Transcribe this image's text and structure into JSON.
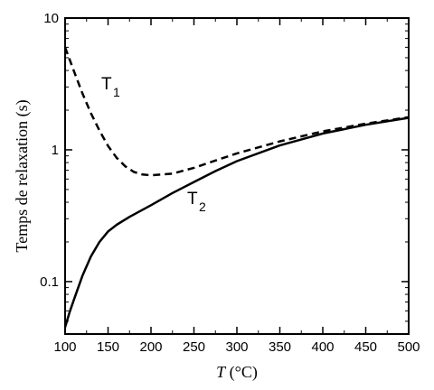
{
  "chart_data": {
    "type": "line",
    "title": "",
    "xlabel": {
      "italic": "T",
      "rest": " (°C)"
    },
    "ylabel": "Temps de relaxation (s)",
    "xlim": [
      100,
      500
    ],
    "ylim": [
      0.04,
      10
    ],
    "yscale": "log",
    "grid": false,
    "xticks": [
      100,
      150,
      200,
      250,
      300,
      350,
      400,
      450,
      500
    ],
    "xtick_labels": [
      "100",
      "150",
      "200",
      "250",
      "300",
      "350",
      "400",
      "450",
      "500"
    ],
    "yticks": [
      0.1,
      1,
      10
    ],
    "ytick_labels": [
      "0.1",
      "1",
      "10"
    ],
    "series": [
      {
        "name": "T1",
        "label_main": "T",
        "label_sub": "1",
        "style": "dashed",
        "color": "#000000",
        "x": [
          100,
          110,
          120,
          130,
          140,
          150,
          160,
          170,
          180,
          190,
          200,
          225,
          250,
          275,
          300,
          350,
          400,
          450,
          500
        ],
        "y": [
          6.0,
          4.0,
          2.7,
          1.9,
          1.4,
          1.07,
          0.87,
          0.75,
          0.68,
          0.65,
          0.64,
          0.66,
          0.73,
          0.83,
          0.94,
          1.16,
          1.38,
          1.58,
          1.77
        ]
      },
      {
        "name": "T2",
        "label_main": "T",
        "label_sub": "2",
        "style": "solid",
        "color": "#000000",
        "x": [
          100,
          105,
          110,
          120,
          130,
          140,
          150,
          160,
          175,
          200,
          225,
          250,
          275,
          300,
          350,
          400,
          450,
          500
        ],
        "y": [
          0.045,
          0.058,
          0.072,
          0.11,
          0.155,
          0.2,
          0.24,
          0.27,
          0.31,
          0.38,
          0.47,
          0.57,
          0.69,
          0.82,
          1.08,
          1.33,
          1.55,
          1.75
        ]
      }
    ]
  }
}
